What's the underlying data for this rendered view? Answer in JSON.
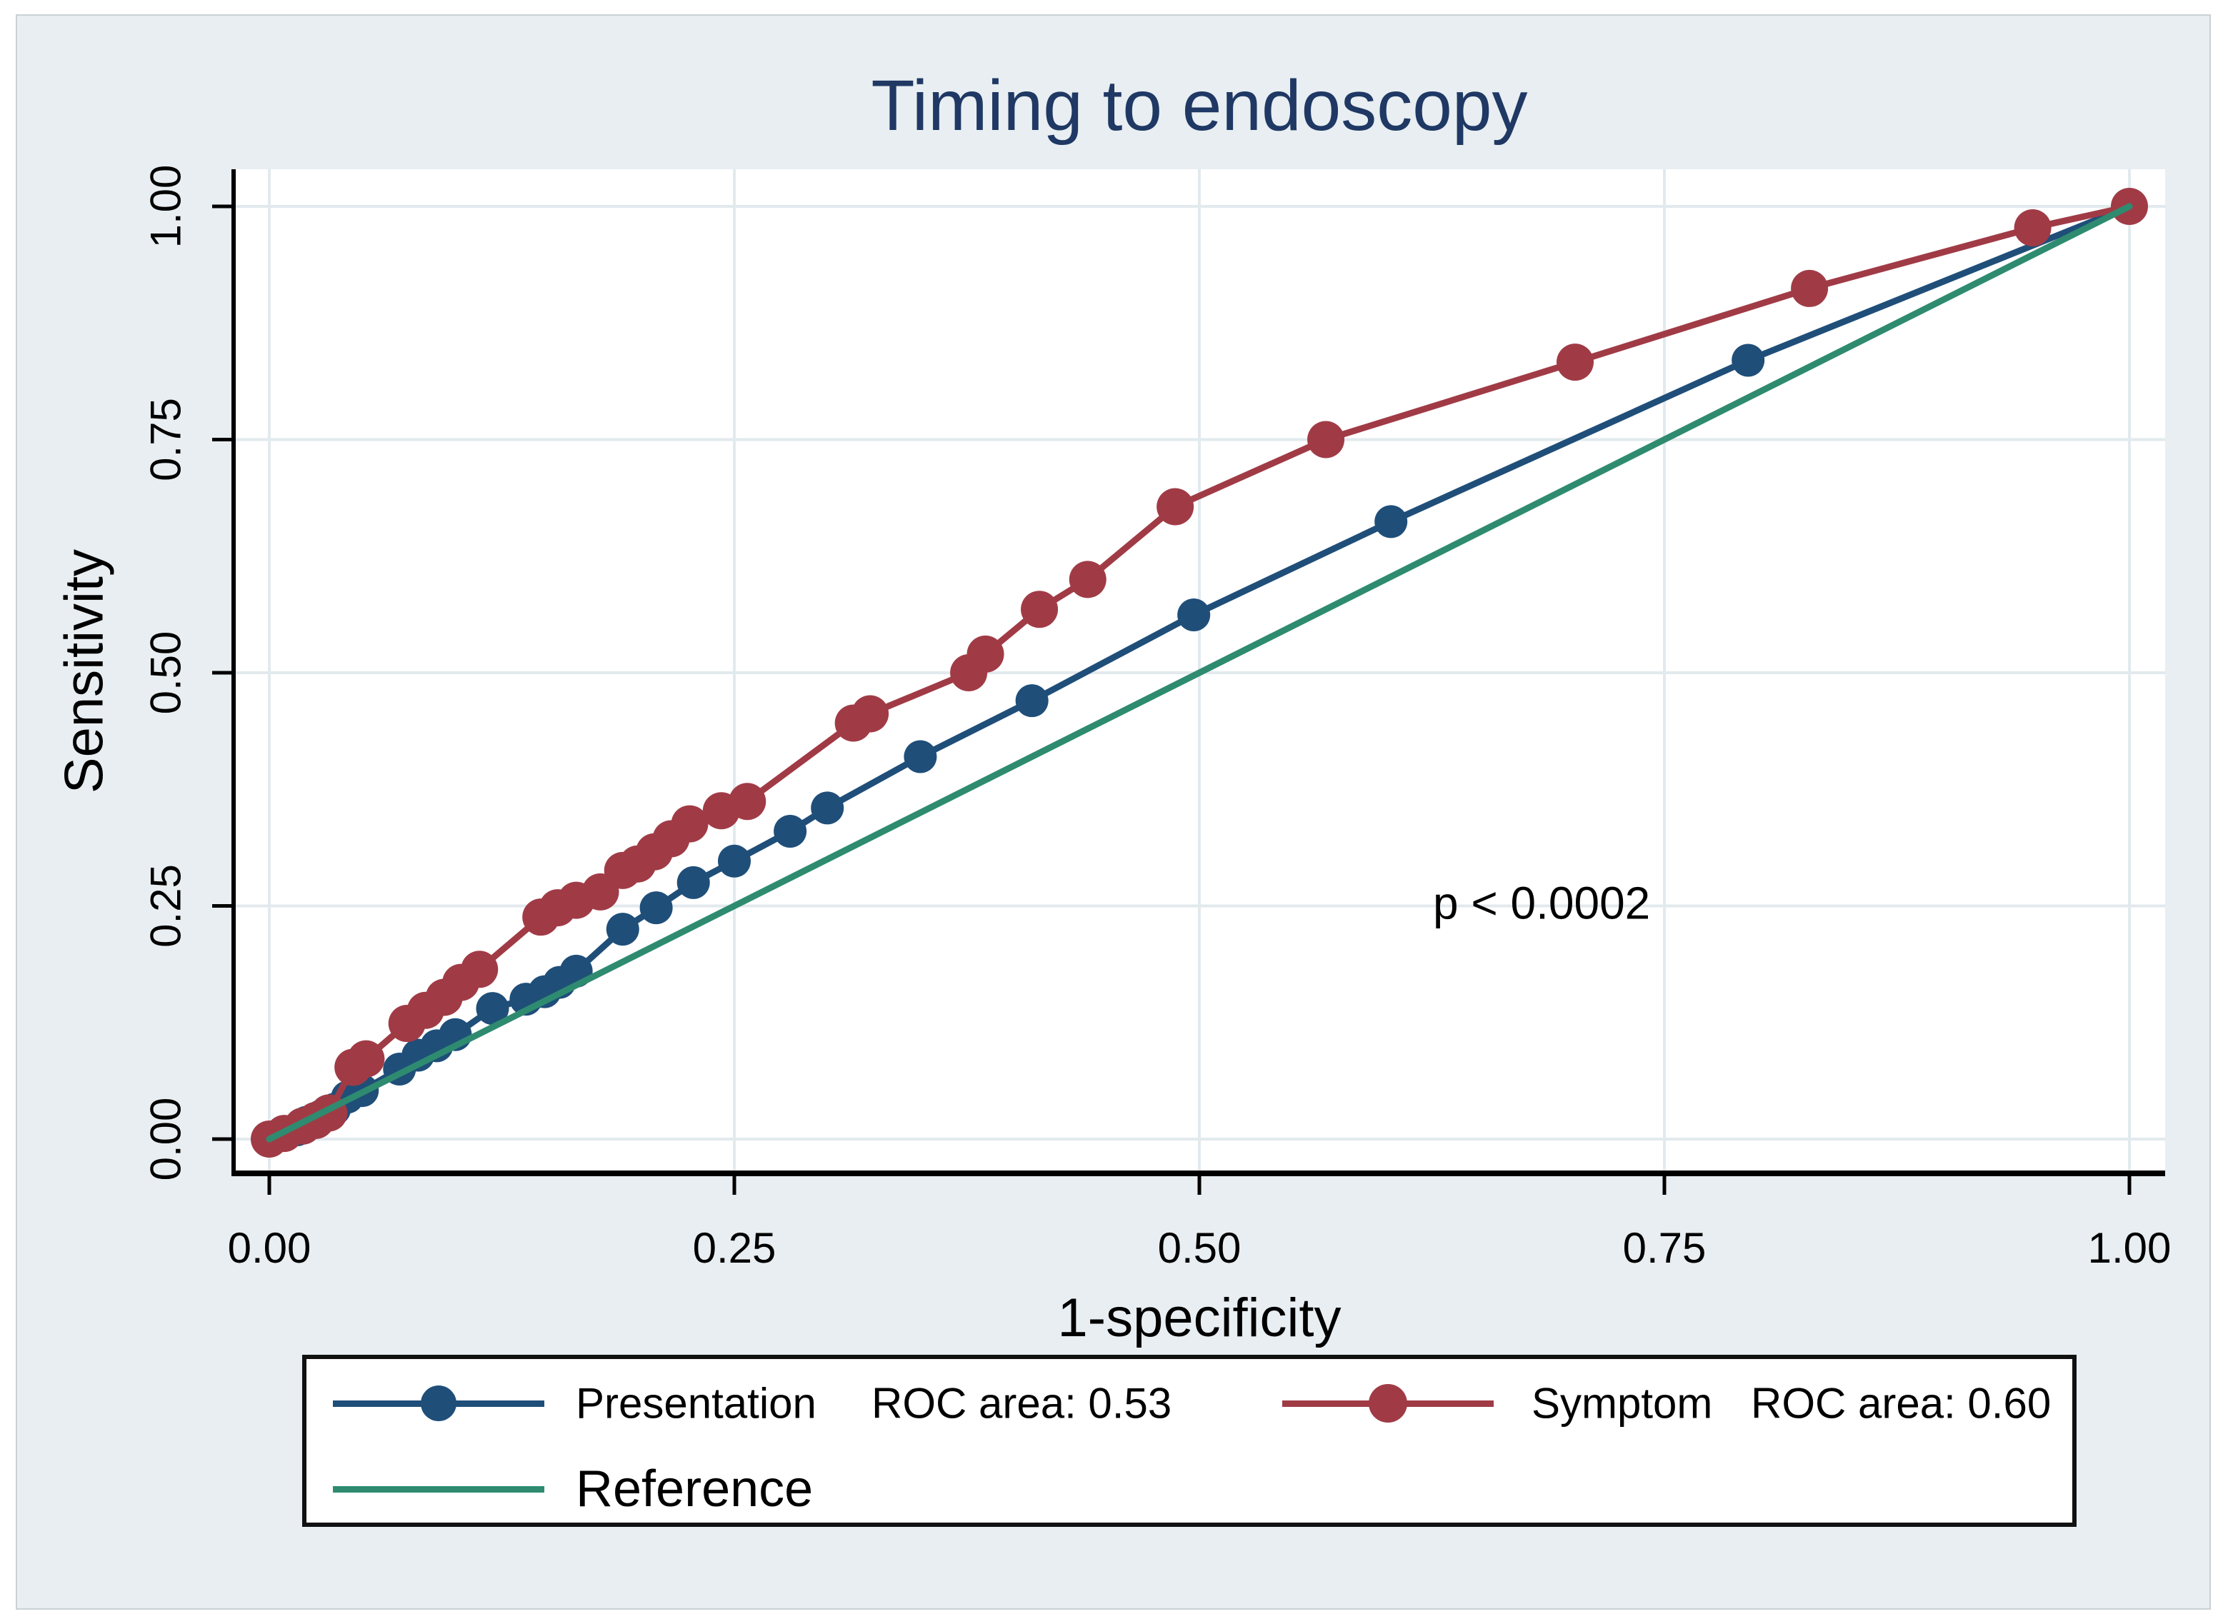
{
  "figure": {
    "title": "Timing to endoscopy",
    "x_axis_label": "1-specificity",
    "y_axis_label": "Sensitivity"
  },
  "legend": {
    "entries": [
      {
        "label": "Presentation",
        "roc_label": "ROC area: 0.53",
        "color": "#1f4e79",
        "marker": true
      },
      {
        "label": "Symptom",
        "roc_label": "ROC area: 0.60",
        "color": "#a03b46",
        "marker": true
      },
      {
        "label": "Reference",
        "roc_label": "",
        "color": "#2e8b6f",
        "marker": false
      }
    ]
  },
  "colors": {
    "background": "#e8eef1",
    "plot_background": "#ffffff",
    "gridline": "#e2eaee",
    "axis": "#000000",
    "title": "#1f3864",
    "presentation": "#1f4e79",
    "symptom": "#a03b46",
    "reference": "#2e8b6f"
  },
  "chart_data": {
    "type": "line",
    "title": "Timing to endoscopy",
    "xlabel": "1-specificity",
    "ylabel": "Sensitivity",
    "xlim": [
      0,
      1
    ],
    "ylim": [
      0,
      1
    ],
    "grid": true,
    "legend_position": "bottom",
    "x_ticks": {
      "values": [
        0,
        0.25,
        0.5,
        0.75,
        1
      ],
      "labels": [
        "0.00",
        "0.25",
        "0.50",
        "0.75",
        "1.00"
      ]
    },
    "y_ticks": {
      "values": [
        0,
        0.25,
        0.5,
        0.75,
        1
      ],
      "labels": [
        "0.00",
        "0.25",
        "0.50",
        "0.75",
        "1.00"
      ]
    },
    "annotation": {
      "text": "p < 0.0002",
      "x": 0.684,
      "y": 0.253
    },
    "series": [
      {
        "name": "Presentation",
        "roc_area": 0.53,
        "color": "#1f4e79",
        "marker": "circle",
        "marker_radius": 23,
        "points": [
          [
            0.0,
            0.0
          ],
          [
            0.008,
            0.004
          ],
          [
            0.015,
            0.01
          ],
          [
            0.02,
            0.018
          ],
          [
            0.028,
            0.025
          ],
          [
            0.035,
            0.032
          ],
          [
            0.042,
            0.045
          ],
          [
            0.05,
            0.052
          ],
          [
            0.07,
            0.075
          ],
          [
            0.08,
            0.09
          ],
          [
            0.09,
            0.1
          ],
          [
            0.1,
            0.112
          ],
          [
            0.12,
            0.14
          ],
          [
            0.138,
            0.15
          ],
          [
            0.148,
            0.158
          ],
          [
            0.156,
            0.168
          ],
          [
            0.165,
            0.18
          ],
          [
            0.19,
            0.225
          ],
          [
            0.208,
            0.248
          ],
          [
            0.228,
            0.275
          ],
          [
            0.25,
            0.298
          ],
          [
            0.28,
            0.33
          ],
          [
            0.3,
            0.355
          ],
          [
            0.35,
            0.41
          ],
          [
            0.41,
            0.47
          ],
          [
            0.497,
            0.562
          ],
          [
            0.603,
            0.662
          ],
          [
            0.795,
            0.835
          ],
          [
            1.0,
            1.0
          ]
        ]
      },
      {
        "name": "Symptom",
        "roc_area": 0.6,
        "color": "#a03b46",
        "marker": "circle",
        "marker_radius": 26,
        "points": [
          [
            0.0,
            0.0
          ],
          [
            0.008,
            0.006
          ],
          [
            0.018,
            0.014
          ],
          [
            0.025,
            0.02
          ],
          [
            0.032,
            0.028
          ],
          [
            0.045,
            0.077
          ],
          [
            0.052,
            0.086
          ],
          [
            0.074,
            0.124
          ],
          [
            0.084,
            0.138
          ],
          [
            0.094,
            0.152
          ],
          [
            0.103,
            0.168
          ],
          [
            0.113,
            0.182
          ],
          [
            0.146,
            0.238
          ],
          [
            0.155,
            0.248
          ],
          [
            0.165,
            0.256
          ],
          [
            0.178,
            0.265
          ],
          [
            0.19,
            0.288
          ],
          [
            0.198,
            0.295
          ],
          [
            0.207,
            0.308
          ],
          [
            0.216,
            0.322
          ],
          [
            0.226,
            0.338
          ],
          [
            0.243,
            0.352
          ],
          [
            0.257,
            0.362
          ],
          [
            0.314,
            0.446
          ],
          [
            0.323,
            0.456
          ],
          [
            0.376,
            0.5
          ],
          [
            0.385,
            0.52
          ],
          [
            0.414,
            0.568
          ],
          [
            0.44,
            0.6
          ],
          [
            0.487,
            0.678
          ],
          [
            0.568,
            0.75
          ],
          [
            0.702,
            0.833
          ],
          [
            0.828,
            0.912
          ],
          [
            0.948,
            0.977
          ],
          [
            1.0,
            1.0
          ]
        ]
      },
      {
        "name": "Reference",
        "color": "#2e8b6f",
        "marker": "none",
        "points": [
          [
            0,
            0
          ],
          [
            1,
            1
          ]
        ]
      }
    ]
  }
}
